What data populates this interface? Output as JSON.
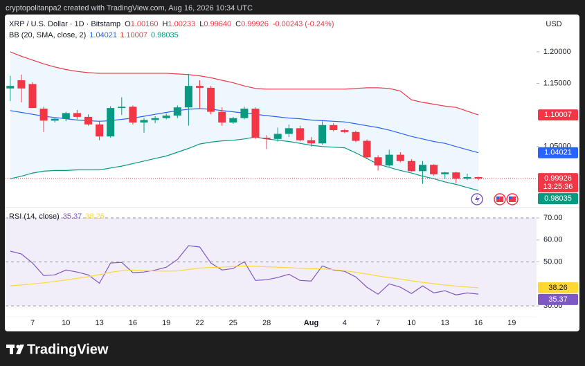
{
  "header": {
    "text": "cryptopolitanpa2 created with TradingView.com, Aug 16, 2026 10:34 UTC"
  },
  "footer": {
    "brand": "TradingView"
  },
  "chart_data": [
    {
      "type": "candlestick",
      "legend": {
        "title": "XRP / U.S. Dollar · 1D · Bitstamp",
        "ohlc": [
          {
            "label": "O",
            "value": "1.00160"
          },
          {
            "label": "H",
            "value": "1.00233"
          },
          {
            "label": "L",
            "value": "0.99640"
          },
          {
            "label": "C",
            "value": "0.99926"
          }
        ],
        "change": "-0.00243 (-0.24%)"
      },
      "indicator": "BB (20, SMA, close, 2)",
      "currency": "USD",
      "countdown": "13:25:36",
      "categories": [
        null,
        null,
        "7",
        null,
        null,
        "10",
        null,
        null,
        "13",
        null,
        null,
        "16",
        null,
        null,
        "19",
        null,
        null,
        "22",
        null,
        null,
        "25",
        null,
        null,
        "28",
        null,
        null,
        null,
        "Aug",
        null,
        null,
        "4",
        null,
        null,
        "7",
        null,
        null,
        "10",
        null,
        null,
        "13",
        null,
        null,
        "16",
        null,
        null,
        "19"
      ],
      "open": [
        1.142,
        1.155,
        1.149,
        1.11,
        1.091,
        1.094,
        1.103,
        1.097,
        1.085,
        1.066,
        1.111,
        1.113,
        1.088,
        1.092,
        1.095,
        1.099,
        1.112,
        1.146,
        1.143,
        1.105,
        1.088,
        1.095,
        1.11,
        1.064,
        1.062,
        1.07,
        1.079,
        1.06,
        1.055,
        1.084,
        1.076,
        1.073,
        1.059,
        1.033,
        1.02,
        1.037,
        1.027,
        1.011,
        1.021,
        1.006,
        1.009,
        0.999,
        1.0016,
        null,
        null,
        null
      ],
      "high": [
        1.162,
        1.164,
        1.152,
        1.113,
        1.095,
        1.105,
        1.108,
        1.101,
        1.091,
        1.114,
        1.128,
        1.115,
        1.095,
        1.098,
        1.102,
        1.115,
        1.165,
        1.155,
        1.146,
        1.112,
        1.097,
        1.113,
        1.112,
        1.068,
        1.08,
        1.085,
        1.083,
        1.065,
        1.09,
        1.087,
        1.078,
        1.075,
        1.061,
        1.036,
        1.045,
        1.041,
        1.03,
        1.027,
        1.022,
        1.01,
        1.01,
        1.007,
        1.00233,
        null,
        null,
        null
      ],
      "low": [
        1.122,
        1.12,
        1.111,
        1.073,
        1.088,
        1.09,
        1.093,
        1.083,
        1.06,
        1.064,
        1.1,
        1.085,
        1.072,
        1.087,
        1.093,
        1.095,
        1.083,
        1.11,
        1.101,
        1.083,
        1.086,
        1.093,
        1.062,
        1.046,
        1.058,
        1.065,
        1.058,
        1.05,
        1.053,
        1.074,
        1.071,
        1.057,
        1.03,
        1.012,
        1.018,
        1.025,
        1.01,
        0.991,
        1.004,
        0.999,
        0.992,
        0.997,
        0.9964,
        null,
        null,
        null
      ],
      "close": [
        1.146,
        1.142,
        1.111,
        1.091,
        1.094,
        1.103,
        1.097,
        1.085,
        1.066,
        1.111,
        1.113,
        1.088,
        1.092,
        1.095,
        1.099,
        1.112,
        1.146,
        1.143,
        1.105,
        1.088,
        1.095,
        1.11,
        1.064,
        1.062,
        1.07,
        1.079,
        1.06,
        1.055,
        1.084,
        1.076,
        1.073,
        1.059,
        1.033,
        1.02,
        1.037,
        1.027,
        1.011,
        1.021,
        1.006,
        1.009,
        0.999,
        1.0016,
        0.99926,
        null,
        null,
        null
      ],
      "up_color": "#089981",
      "down_color": "#f23645",
      "series": [
        {
          "color": "#f23645",
          "values": [
            1.2,
            1.193,
            1.187,
            1.181,
            1.176,
            1.172,
            1.169,
            1.167,
            1.166,
            1.166,
            1.166,
            1.166,
            1.166,
            1.166,
            1.166,
            1.165,
            1.164,
            1.162,
            1.159,
            1.155,
            1.151,
            1.146,
            1.142,
            1.141,
            1.141,
            1.141,
            1.141,
            1.141,
            1.141,
            1.141,
            1.141,
            1.142,
            1.143,
            1.143,
            1.142,
            1.138,
            1.124,
            1.12,
            1.117,
            1.114,
            1.112,
            1.106,
            1.10007,
            null,
            null,
            null
          ]
        },
        {
          "color": "#2962ff",
          "values": [
            1.107,
            1.104,
            1.101,
            1.098,
            1.096,
            1.094,
            1.092,
            1.091,
            1.09,
            1.091,
            1.093,
            1.095,
            1.098,
            1.101,
            1.104,
            1.107,
            1.109,
            1.11,
            1.109,
            1.107,
            1.105,
            1.103,
            1.101,
            1.099,
            1.097,
            1.095,
            1.094,
            1.092,
            1.091,
            1.09,
            1.089,
            1.086,
            1.083,
            1.08,
            1.076,
            1.071,
            1.066,
            1.062,
            1.058,
            1.055,
            1.05,
            1.045,
            1.04021,
            null,
            null,
            null
          ]
        },
        {
          "color": "#089981",
          "values": [
            0.999,
            1.003,
            1.008,
            1.011,
            1.012,
            1.012,
            1.013,
            1.013,
            1.013,
            1.016,
            1.019,
            1.023,
            1.027,
            1.031,
            1.035,
            1.041,
            1.047,
            1.054,
            1.057,
            1.059,
            1.06,
            1.062,
            1.065,
            1.062,
            1.06,
            1.058,
            1.055,
            1.052,
            1.05,
            1.049,
            1.048,
            1.04,
            1.031,
            1.022,
            1.017,
            1.012,
            1.008,
            1.003,
            0.999,
            0.994,
            0.99,
            0.985,
            0.98035,
            null,
            null,
            null
          ]
        }
      ],
      "band_fill": "#2196f3",
      "ylim": [
        0.9555,
        1.258
      ],
      "yticks": [
        {
          "value": 1.2,
          "label": "1.20000"
        },
        {
          "value": 1.15,
          "label": "1.15000"
        },
        {
          "value": 1.05,
          "label": "1.05000"
        }
      ]
    },
    {
      "type": "line",
      "title": "RSI (14, close)",
      "categories": [
        null,
        null,
        "7",
        null,
        null,
        "10",
        null,
        null,
        "13",
        null,
        null,
        "16",
        null,
        null,
        "19",
        null,
        null,
        "22",
        null,
        null,
        "25",
        null,
        null,
        "28",
        null,
        null,
        null,
        "Aug",
        null,
        null,
        "4",
        null,
        null,
        "7",
        null,
        null,
        "10",
        null,
        null,
        "13",
        null,
        null,
        "16",
        null,
        null,
        "19"
      ],
      "series": [
        {
          "color": "#7e57c2",
          "values": [
            54.9,
            53.6,
            49.5,
            43.8,
            44.1,
            46.3,
            45.4,
            44.1,
            40.3,
            49.5,
            49.8,
            45.1,
            45.4,
            46.3,
            47.6,
            51.1,
            57.4,
            56.8,
            49.5,
            46.3,
            47.0,
            50.1,
            41.6,
            41.9,
            42.9,
            44.4,
            41.6,
            41.3,
            48.2,
            46.3,
            45.7,
            43.2,
            38.5,
            35.3,
            40.0,
            38.5,
            35.6,
            39.1,
            35.9,
            36.9,
            35.0,
            35.9,
            35.37,
            null,
            null,
            null
          ]
        },
        {
          "color": "#fdd835",
          "values": [
            39.1,
            39.5,
            40.0,
            40.5,
            41.1,
            41.8,
            42.5,
            43.3,
            44.2,
            45.3,
            46.0,
            46.3,
            46.1,
            45.9,
            45.8,
            45.9,
            46.6,
            47.2,
            47.5,
            47.6,
            47.9,
            48.2,
            48.0,
            47.8,
            47.6,
            47.4,
            47.1,
            46.9,
            46.8,
            46.5,
            46.0,
            45.3,
            44.5,
            43.6,
            42.9,
            42.2,
            41.4,
            40.7,
            40.1,
            39.5,
            39.0,
            38.6,
            38.26,
            null,
            null,
            null
          ]
        }
      ],
      "band": [
        30,
        70
      ],
      "hlines": [
        70,
        50,
        30
      ],
      "band_fill": "#7e57c2",
      "ylim": [
        25,
        74.1
      ],
      "yticks": [
        {
          "value": 70,
          "label": "70.00"
        },
        {
          "value": 60,
          "label": "60.00"
        },
        {
          "value": 50,
          "label": "50.00"
        },
        {
          "value": 30,
          "label": "30.00"
        }
      ]
    }
  ]
}
